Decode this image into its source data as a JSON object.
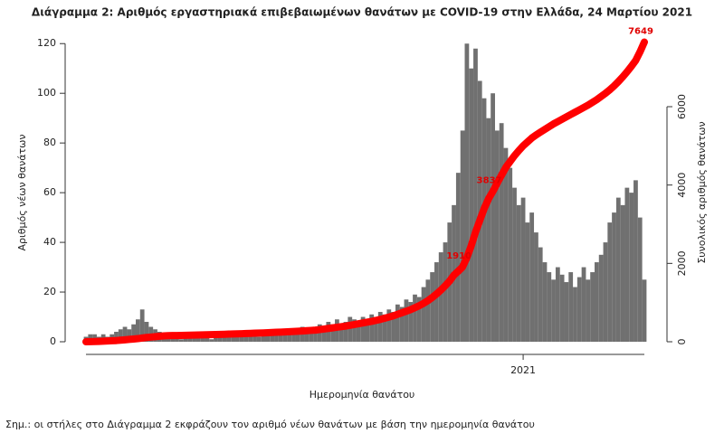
{
  "chart_data": {
    "type": "bar-line",
    "title": "Διάγραμμα 2: Αριθμός εργαστηριακά επιβεβαιωμένων θανάτων με COVID-19 στην Ελλάδα, 24 Μαρτίου 2021",
    "x_label": "Ημερομηνία θανάτου",
    "y_label": "Αριθμός νέων θανάτων",
    "y2_label": "Συνολικός αριθμός θανάτων",
    "note": "Σημ.: οι στήλες στο Διάγραμμα 2 εκφράζουν τον αριθμό νέων θανάτων με βάση την ημερομηνία θανάτου",
    "categories": [
      null,
      null,
      null,
      null,
      null,
      null,
      null,
      null,
      null,
      null,
      null,
      null,
      null,
      null,
      null,
      null,
      null,
      null,
      null,
      null,
      null,
      null,
      null,
      null,
      null,
      null,
      null,
      null,
      null,
      null,
      null,
      null,
      null,
      null,
      null,
      null,
      null,
      null,
      null,
      null,
      null,
      null,
      null,
      null,
      null,
      null,
      null,
      null,
      null,
      null,
      null,
      null,
      null,
      null,
      null,
      null,
      null,
      null,
      null,
      null,
      null,
      null,
      null,
      null,
      null,
      null,
      null,
      null,
      null,
      null,
      null,
      null,
      null,
      null,
      null,
      null,
      null,
      null,
      null,
      null,
      null,
      null,
      null,
      null,
      null,
      null,
      null,
      null,
      null,
      null,
      null,
      null,
      null,
      null,
      null,
      null,
      null,
      null,
      null,
      null,
      null,
      "2021",
      null,
      null,
      null,
      null,
      null,
      null,
      null,
      null,
      null,
      null,
      null,
      null,
      null,
      null,
      null,
      null,
      null,
      null,
      null,
      null,
      null,
      null,
      null,
      null,
      null,
      null,
      null,
      null
    ],
    "series": [
      {
        "type": "bar",
        "color": "#707070",
        "values": [
          2,
          3,
          3,
          2,
          3,
          2,
          3,
          4,
          5,
          6,
          5,
          7,
          9,
          13,
          8,
          6,
          5,
          4,
          3,
          2,
          3,
          2,
          1,
          2,
          3,
          2,
          2,
          3,
          2,
          1,
          2,
          2,
          3,
          2,
          3,
          2,
          2,
          3,
          4,
          3,
          2,
          3,
          4,
          5,
          3,
          4,
          4,
          5,
          4,
          5,
          6,
          5,
          4,
          6,
          7,
          6,
          8,
          7,
          9,
          6,
          8,
          10,
          9,
          8,
          10,
          9,
          11,
          10,
          12,
          11,
          13,
          12,
          15,
          14,
          17,
          16,
          19,
          18,
          22,
          25,
          28,
          32,
          36,
          40,
          48,
          55,
          68,
          85,
          120,
          110,
          118,
          105,
          98,
          90,
          100,
          85,
          88,
          78,
          70,
          62,
          55,
          58,
          48,
          52,
          44,
          38,
          32,
          28,
          25,
          30,
          27,
          24,
          28,
          22,
          26,
          30,
          25,
          28,
          32,
          35,
          40,
          48,
          52,
          58,
          55,
          62,
          60,
          65,
          50,
          25
        ]
      },
      {
        "type": "line",
        "axis": "y2",
        "color": "#ff0000",
        "values": [
          0,
          2,
          5,
          10,
          15,
          20,
          25,
          30,
          40,
          50,
          60,
          70,
          80,
          95,
          110,
          120,
          130,
          140,
          150,
          155,
          158,
          160,
          162,
          165,
          168,
          170,
          173,
          176,
          179,
          182,
          185,
          188,
          191,
          195,
          198,
          202,
          206,
          210,
          214,
          218,
          222,
          226,
          231,
          236,
          241,
          246,
          251,
          257,
          263,
          269,
          275,
          282,
          290,
          298,
          310,
          325,
          340,
          355,
          370,
          385,
          400,
          420,
          440,
          460,
          480,
          500,
          520,
          545,
          570,
          600,
          630,
          660,
          700,
          740,
          780,
          820,
          870,
          920,
          980,
          1050,
          1130,
          1220,
          1320,
          1430,
          1550,
          1700,
          1800,
          1910,
          2150,
          2450,
          2800,
          3100,
          3400,
          3650,
          3837,
          4050,
          4250,
          4450,
          4600,
          4750,
          4880,
          5000,
          5100,
          5200,
          5280,
          5350,
          5420,
          5490,
          5560,
          5620,
          5680,
          5740,
          5800,
          5860,
          5920,
          5980,
          6040,
          6110,
          6180,
          6260,
          6340,
          6430,
          6530,
          6640,
          6760,
          6890,
          7030,
          7180,
          7400,
          7649
        ],
        "annotations": [
          "1910",
          "3837",
          "7649"
        ]
      }
    ],
    "ylim": [
      0,
      123
    ],
    "yticks": [
      0,
      20,
      40,
      60,
      80,
      100,
      120
    ],
    "y2lim": [
      0,
      7800
    ],
    "y2ticks": [
      0,
      2000,
      4000,
      6000
    ]
  }
}
